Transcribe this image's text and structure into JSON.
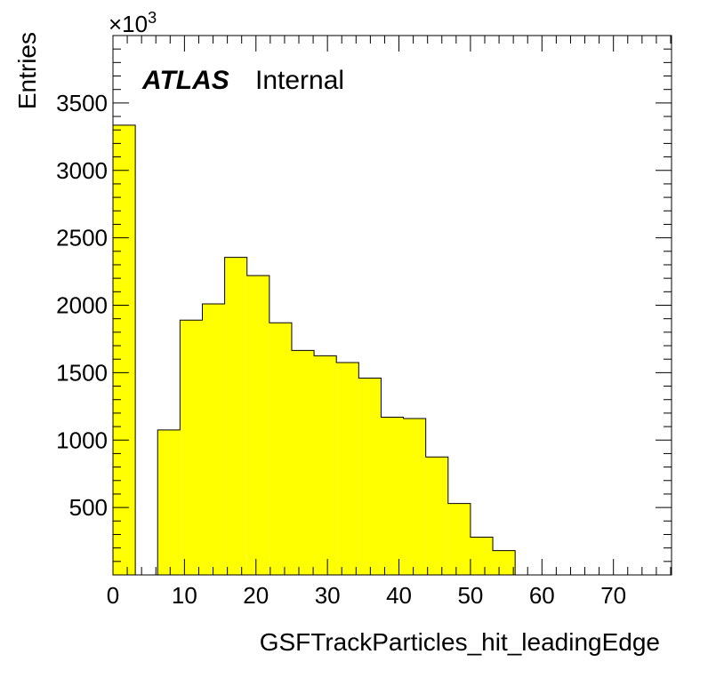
{
  "chart_data": {
    "type": "bar",
    "histogram": true,
    "bin_width": 3.125,
    "x_start": 0,
    "values": [
      3335,
      0,
      1075,
      1890,
      2010,
      2355,
      2220,
      1870,
      1665,
      1625,
      1575,
      1460,
      1170,
      1160,
      875,
      530,
      280,
      180,
      0,
      0,
      0,
      0,
      0,
      0,
      0
    ],
    "xlim": [
      0,
      78.125
    ],
    "ylim": [
      0,
      4000
    ],
    "xticks": [
      0,
      10,
      20,
      30,
      40,
      50,
      60,
      70
    ],
    "yticks": [
      500,
      1000,
      1500,
      2000,
      2500,
      3000,
      3500
    ],
    "xlabel": "GSFTrackParticles_hit_leadingEdge",
    "ylabel": "Entries",
    "y_multiplier_base": "×10",
    "y_multiplier_exp": "3",
    "fill_color": "#ffff00",
    "line_color": "#000000",
    "label_bold": "ATLAS",
    "label_rest": "Internal"
  }
}
